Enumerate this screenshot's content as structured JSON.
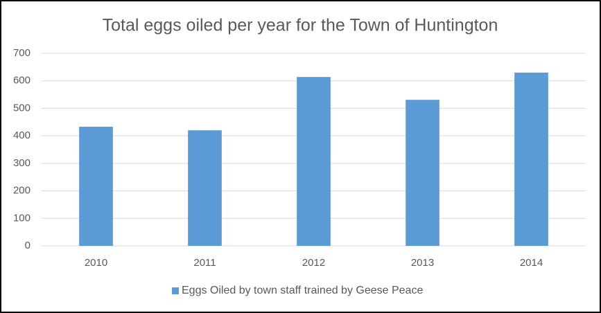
{
  "chart_data": {
    "type": "bar",
    "title": "Total eggs oiled per year for the Town of Huntington",
    "categories": [
      "2010",
      "2011",
      "2012",
      "2013",
      "2014"
    ],
    "series": [
      {
        "name": "Eggs Oiled by town staff trained by Geese Peace",
        "color": "#5b9bd5",
        "values": [
          433,
          420,
          614,
          531,
          630
        ]
      }
    ],
    "ylim": [
      0,
      700
    ],
    "yticks": [
      0,
      100,
      200,
      300,
      400,
      500,
      600,
      700
    ],
    "grid": true,
    "legend": "bottom"
  }
}
